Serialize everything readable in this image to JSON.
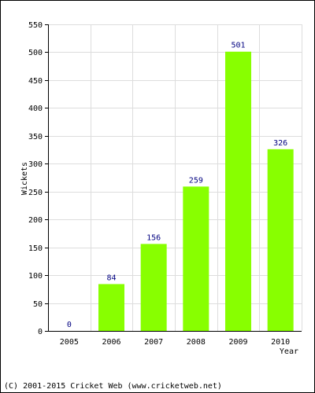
{
  "chart_data": {
    "type": "bar",
    "categories": [
      "2005",
      "2006",
      "2007",
      "2008",
      "2009",
      "2010"
    ],
    "values": [
      0,
      84,
      156,
      259,
      501,
      326
    ],
    "xlabel": "Year",
    "ylabel": "Wickets",
    "ylim": [
      0,
      550
    ],
    "yticks": [
      0,
      50,
      100,
      150,
      200,
      250,
      300,
      350,
      400,
      450,
      500,
      550
    ],
    "grid": true,
    "bar_color": "#88ff00",
    "value_label_color": "#000080"
  },
  "footer": {
    "credit": "(C) 2001-2015 Cricket Web (www.cricketweb.net)"
  }
}
